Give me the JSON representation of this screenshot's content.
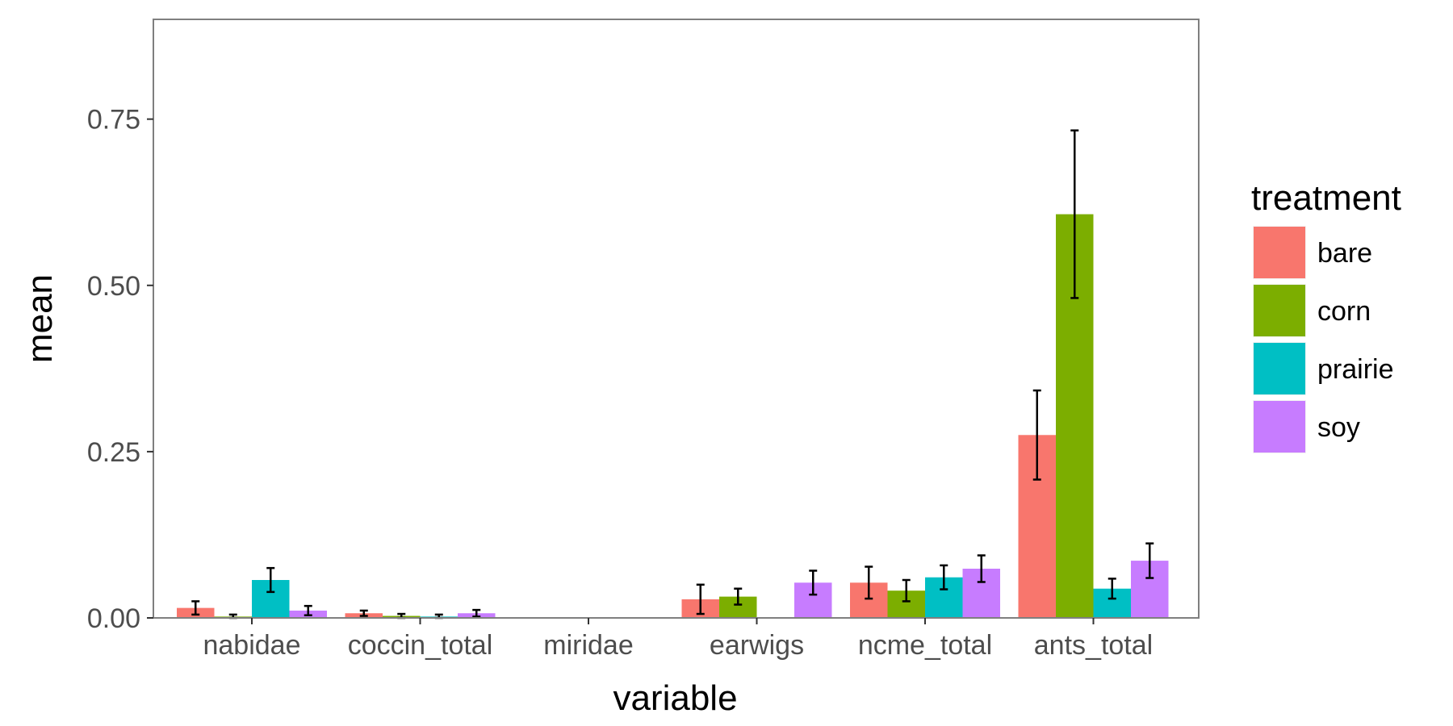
{
  "chart_data": {
    "type": "bar",
    "xlabel": "variable",
    "ylabel": "mean",
    "ylim": [
      0,
      0.9
    ],
    "yticks": [
      "0.00",
      "0.25",
      "0.50",
      "0.75"
    ],
    "ytick_values": [
      0,
      0.25,
      0.5,
      0.75
    ],
    "categories": [
      "nabidae",
      "coccin_total",
      "miridae",
      "earwigs",
      "ncme_total",
      "ants_total"
    ],
    "grid": false,
    "legend": {
      "title": "treatment",
      "position": "right"
    },
    "series": [
      {
        "name": "bare",
        "color": "#F8766D",
        "values": [
          0.015,
          0.007,
          0,
          0.028,
          0.053,
          0.275
        ],
        "errors": [
          0.01,
          0.004,
          0,
          0.022,
          0.024,
          0.067
        ]
      },
      {
        "name": "corn",
        "color": "#7CAE00",
        "values": [
          0.002,
          0.003,
          0,
          0.032,
          0.041,
          0.607
        ],
        "errors": [
          0.003,
          0.003,
          0,
          0.012,
          0.016,
          0.126
        ]
      },
      {
        "name": "prairie",
        "color": "#00BFC4",
        "values": [
          0.057,
          0.002,
          0,
          0,
          0.061,
          0.044
        ],
        "errors": [
          0.018,
          0.003,
          0,
          0,
          0.018,
          0.015
        ]
      },
      {
        "name": "soy",
        "color": "#C77CFF",
        "values": [
          0.011,
          0.007,
          0,
          0.053,
          0.074,
          0.086
        ],
        "errors": [
          0.007,
          0.005,
          0,
          0.018,
          0.02,
          0.026
        ]
      }
    ]
  }
}
